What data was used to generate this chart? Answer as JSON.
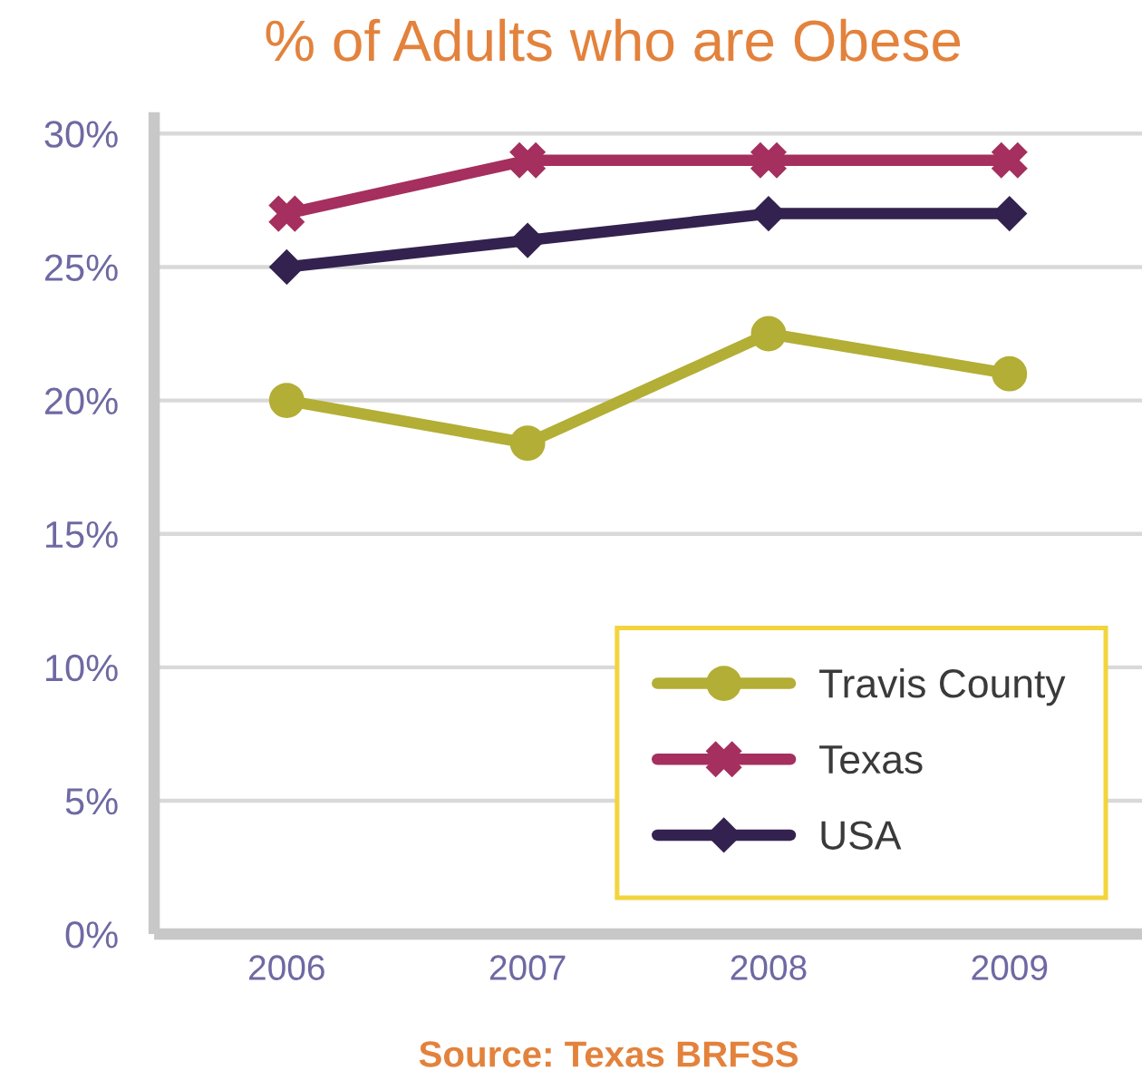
{
  "chart_data": {
    "type": "line",
    "title": "% of Adults who are Obese",
    "categories": [
      "2006",
      "2007",
      "2008",
      "2009"
    ],
    "series": [
      {
        "name": "Travis County",
        "color": "#b3ae35",
        "marker": "circle",
        "values": [
          20,
          18.4,
          22.5,
          21
        ]
      },
      {
        "name": "Texas",
        "color": "#a52f5e",
        "marker": "cross",
        "values": [
          27,
          29,
          29,
          29
        ]
      },
      {
        "name": "USA",
        "color": "#33224f",
        "marker": "diamond",
        "values": [
          25,
          26,
          27,
          27
        ]
      }
    ],
    "ylim": [
      0,
      30.8
    ],
    "yticks": [
      {
        "value": 0,
        "label": "0%"
      },
      {
        "value": 5,
        "label": "5%"
      },
      {
        "value": 10,
        "label": "10%"
      },
      {
        "value": 15,
        "label": "15%"
      },
      {
        "value": 20,
        "label": "20%"
      },
      {
        "value": 25,
        "label": "25%"
      },
      {
        "value": 30,
        "label": "30%"
      }
    ],
    "grid": "y",
    "legend": "bottom right",
    "line_style": "solid",
    "annotations": [
      "Source: Texas BRFSS"
    ]
  }
}
